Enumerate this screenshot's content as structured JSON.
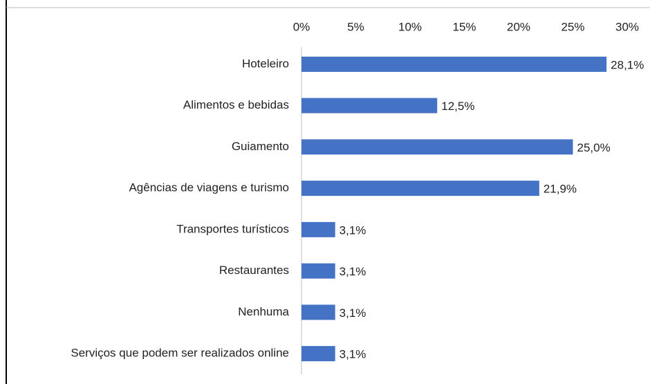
{
  "chart_data": {
    "type": "bar",
    "orientation": "horizontal",
    "categories": [
      "Hoteleiro",
      "Alimentos e bebidas",
      "Guiamento",
      "Agências de viagens e turismo",
      "Transportes turísticos",
      "Restaurantes",
      "Nenhuma",
      "Serviços que podem ser realizados online"
    ],
    "values": [
      28.1,
      12.5,
      25.0,
      21.9,
      3.1,
      3.1,
      3.1,
      3.1
    ],
    "value_labels": [
      "28,1%",
      "12,5%",
      "25,0%",
      "21,9%",
      "3,1%",
      "3,1%",
      "3,1%",
      "3,1%"
    ],
    "color": "#4472c4",
    "xlim": [
      0,
      30
    ],
    "xticks": [
      {
        "value": 0,
        "label": "0%"
      },
      {
        "value": 5,
        "label": "5%"
      },
      {
        "value": 10,
        "label": "10%"
      },
      {
        "value": 15,
        "label": "15%"
      },
      {
        "value": 20,
        "label": "20%"
      },
      {
        "value": 25,
        "label": "25%"
      },
      {
        "value": 30,
        "label": "30%"
      }
    ],
    "grid": false
  }
}
